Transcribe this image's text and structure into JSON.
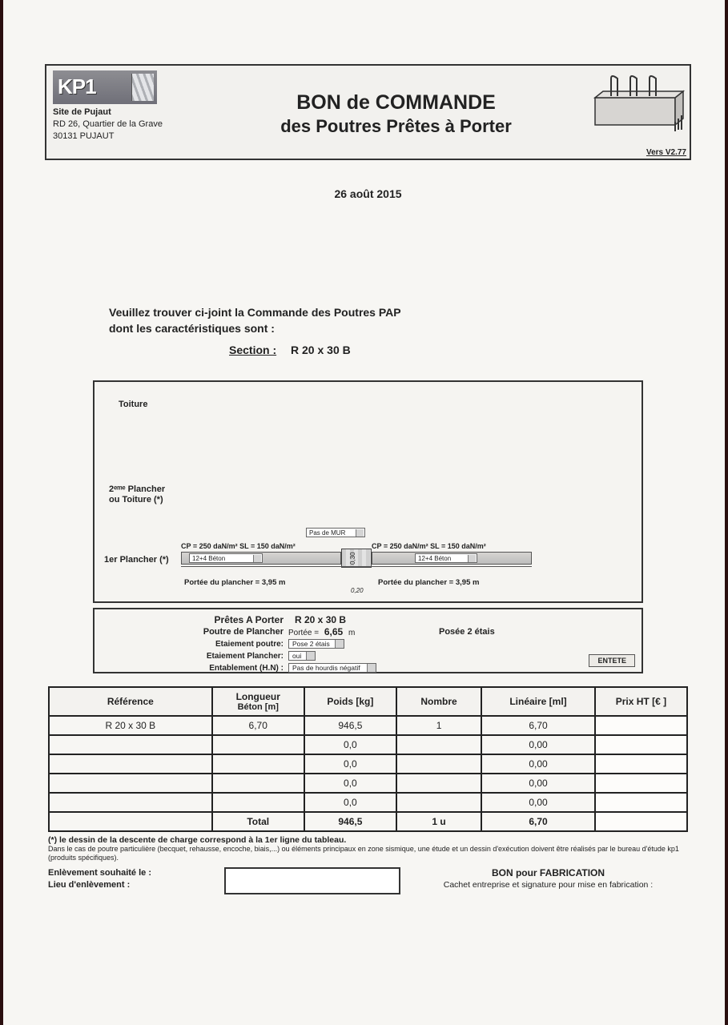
{
  "header": {
    "logo_text": "KP1",
    "site_bold": "Site de Pujaut",
    "addr1": "RD 26, Quartier de la Grave",
    "addr2": "30131 PUJAUT",
    "title1": "BON de COMMANDE",
    "title2": "des Poutres Prêtes à Porter",
    "version": "Vers V2.77"
  },
  "date": "26 août 2015",
  "intro": {
    "l1": "Veuillez trouver ci-joint la Commande des Poutres PAP",
    "l2": "dont les caractéristiques sont :",
    "section_label": "Section :",
    "section_value": "R 20 x 30 B"
  },
  "diagram": {
    "toiture": "Toiture",
    "plancher2": "2ᵉᵐᵉ Plancher\nou Toiture (*)",
    "plancher1": "1er Plancher (*)",
    "loads_left": "CP = 250 daN/m²   SL = 150 daN/m²",
    "loads_right": "CP = 250 daN/m²   SL = 150 daN/m²",
    "sel_mur": "Pas de MUR",
    "sel_block_l": "12+4 Béton",
    "sel_block_r": "12+4 Béton",
    "portee_left": "Portée du plancher = 3,95 m",
    "portee_right": "Portée du plancher = 3,95 m",
    "v1": "0,30",
    "v2": "0,20"
  },
  "summary": {
    "pret": "Prêtes A Porter",
    "section": "R 20 x 30 B",
    "poutre": "Poutre de Plancher",
    "portee_lbl": "Portée =",
    "portee_val": "6,65",
    "portee_unit": "m",
    "posee": "Posée 2 étais",
    "row_etai_poutre_lbl": "Etaiement poutre:",
    "row_etai_poutre_val": "Pose 2 étais",
    "row_etai_plancher_lbl": "Etaiement Plancher:",
    "row_etai_plancher_val": "oui",
    "row_entablement_lbl": "Entablement (H.N) :",
    "row_entablement_val": "Pas de hourdis négatif",
    "entete_btn": "ENTETE"
  },
  "table": {
    "headers": {
      "ref": "Référence",
      "longueur": "Longueur",
      "longueur_sub": "Béton [m]",
      "poids": "Poids [kg]",
      "nombre": "Nombre",
      "lineaire": "Linéaire [ml]",
      "prix": "Prix HT  [€ ]"
    },
    "rows": [
      {
        "ref": "R 20 x 30 B",
        "longueur": "6,70",
        "poids": "946,5",
        "nombre": "1",
        "lineaire": "6,70",
        "prix": ""
      },
      {
        "ref": "",
        "longueur": "",
        "poids": "0,0",
        "nombre": "",
        "lineaire": "0,00",
        "prix": ""
      },
      {
        "ref": "",
        "longueur": "",
        "poids": "0,0",
        "nombre": "",
        "lineaire": "0,00",
        "prix": ""
      },
      {
        "ref": "",
        "longueur": "",
        "poids": "0,0",
        "nombre": "",
        "lineaire": "0,00",
        "prix": ""
      },
      {
        "ref": "",
        "longueur": "",
        "poids": "0,0",
        "nombre": "",
        "lineaire": "0,00",
        "prix": ""
      }
    ],
    "total": {
      "label": "Total",
      "poids": "946,5",
      "nombre": "1 u",
      "lineaire": "6,70",
      "prix": ""
    }
  },
  "footnote": {
    "l1": "(*) le dessin de la descente de charge correspond à la 1er ligne du tableau.",
    "l2": "Dans le cas de poutre particulière (becquet, rehausse, encoche, biais,...) ou éléments principaux en zone sismique, une étude et un dessin d'exécution doivent être réalisés par le bureau d'étude kp1 (produits spécifiques)."
  },
  "delivery": {
    "l1": "Enlèvement souhaité le :",
    "l2": "Lieu d'enlèvement :",
    "bon": "BON pour FABRICATION",
    "cachet": "Cachet entreprise et signature pour mise en fabrication :"
  }
}
